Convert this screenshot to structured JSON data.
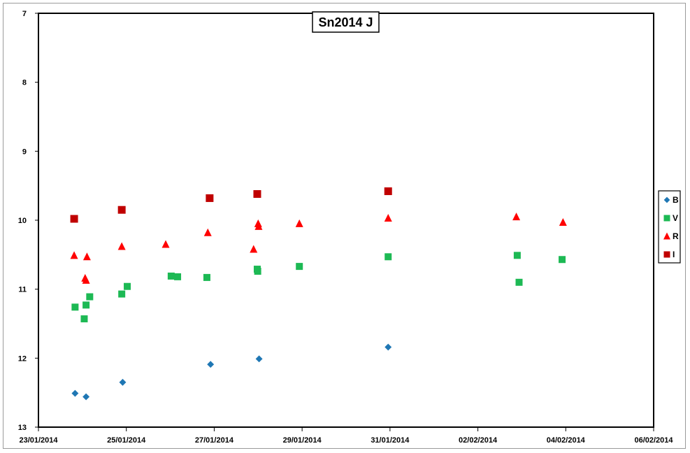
{
  "chart_data": {
    "type": "scatter",
    "title": "Sn2014 J",
    "xlabel": "",
    "ylabel": "",
    "x_axis": {
      "type": "date",
      "range": [
        "2014-01-23",
        "2014-02-06"
      ],
      "tick_labels": [
        "23/01/2014",
        "25/01/2014",
        "27/01/2014",
        "29/01/2014",
        "31/01/2014",
        "02/02/2014",
        "04/02/2014",
        "06/02/2014"
      ],
      "tick_dates": [
        "2014-01-23",
        "2014-01-25",
        "2014-01-27",
        "2014-01-29",
        "2014-01-31",
        "2014-02-02",
        "2014-02-04",
        "2014-02-06"
      ]
    },
    "y_axis": {
      "range": [
        7,
        13
      ],
      "inverted": true,
      "tick_labels": [
        "7",
        "8",
        "9",
        "10",
        "11",
        "12",
        "13"
      ],
      "tick_values": [
        7,
        8,
        9,
        10,
        11,
        12,
        13
      ]
    },
    "grid": false,
    "legend_position": "right",
    "series": [
      {
        "name": "B",
        "color": "#1f77b4",
        "marker": "diamond",
        "points": [
          {
            "x": "2014-01-23 20:00",
            "y": 12.51
          },
          {
            "x": "2014-01-24 02:00",
            "y": 12.56
          },
          {
            "x": "2014-01-24 22:00",
            "y": 12.35
          },
          {
            "x": "2014-01-26 22:00",
            "y": 12.09
          },
          {
            "x": "2014-01-28 00:30",
            "y": 12.01
          },
          {
            "x": "2014-01-30 23:00",
            "y": 11.84
          }
        ]
      },
      {
        "name": "V",
        "color": "#1db954",
        "marker": "square",
        "points": [
          {
            "x": "2014-01-23 20:00",
            "y": 11.26
          },
          {
            "x": "2014-01-24 02:00",
            "y": 11.23
          },
          {
            "x": "2014-01-24 01:00",
            "y": 11.43
          },
          {
            "x": "2014-01-24 04:00",
            "y": 11.11
          },
          {
            "x": "2014-01-24 21:30",
            "y": 11.07
          },
          {
            "x": "2014-01-25 00:30",
            "y": 10.96
          },
          {
            "x": "2014-01-26 00:30",
            "y": 10.81
          },
          {
            "x": "2014-01-26 04:00",
            "y": 10.82
          },
          {
            "x": "2014-01-26 20:00",
            "y": 10.83
          },
          {
            "x": "2014-01-27 23:30",
            "y": 10.71
          },
          {
            "x": "2014-01-27 23:45",
            "y": 10.74
          },
          {
            "x": "2014-01-28 22:30",
            "y": 10.67
          },
          {
            "x": "2014-01-30 23:00",
            "y": 10.53
          },
          {
            "x": "2014-02-02 21:30",
            "y": 10.51
          },
          {
            "x": "2014-02-02 22:30",
            "y": 10.9
          },
          {
            "x": "2014-02-03 22:00",
            "y": 10.57
          }
        ]
      },
      {
        "name": "R",
        "color": "#ff0000",
        "marker": "triangle",
        "points": [
          {
            "x": "2014-01-23 19:30",
            "y": 10.51
          },
          {
            "x": "2014-01-24 02:30",
            "y": 10.53
          },
          {
            "x": "2014-01-24 01:30",
            "y": 10.84
          },
          {
            "x": "2014-01-24 02:00",
            "y": 10.87
          },
          {
            "x": "2014-01-24 21:30",
            "y": 10.38
          },
          {
            "x": "2014-01-25 21:30",
            "y": 10.35
          },
          {
            "x": "2014-01-26 20:30",
            "y": 10.18
          },
          {
            "x": "2014-01-27 21:30",
            "y": 10.42
          },
          {
            "x": "2014-01-28 00:00",
            "y": 10.05
          },
          {
            "x": "2014-01-28 00:15",
            "y": 10.09
          },
          {
            "x": "2014-01-28 22:30",
            "y": 10.05
          },
          {
            "x": "2014-01-30 23:00",
            "y": 9.97
          },
          {
            "x": "2014-02-02 21:00",
            "y": 9.95
          },
          {
            "x": "2014-02-03 22:30",
            "y": 10.03
          }
        ]
      },
      {
        "name": "I",
        "color": "#c00000",
        "marker": "square",
        "points": [
          {
            "x": "2014-01-23 19:30",
            "y": 9.98
          },
          {
            "x": "2014-01-24 21:30",
            "y": 9.85
          },
          {
            "x": "2014-01-26 21:30",
            "y": 9.68
          },
          {
            "x": "2014-01-27 23:30",
            "y": 9.62
          },
          {
            "x": "2014-01-30 23:00",
            "y": 9.58
          }
        ]
      }
    ]
  }
}
